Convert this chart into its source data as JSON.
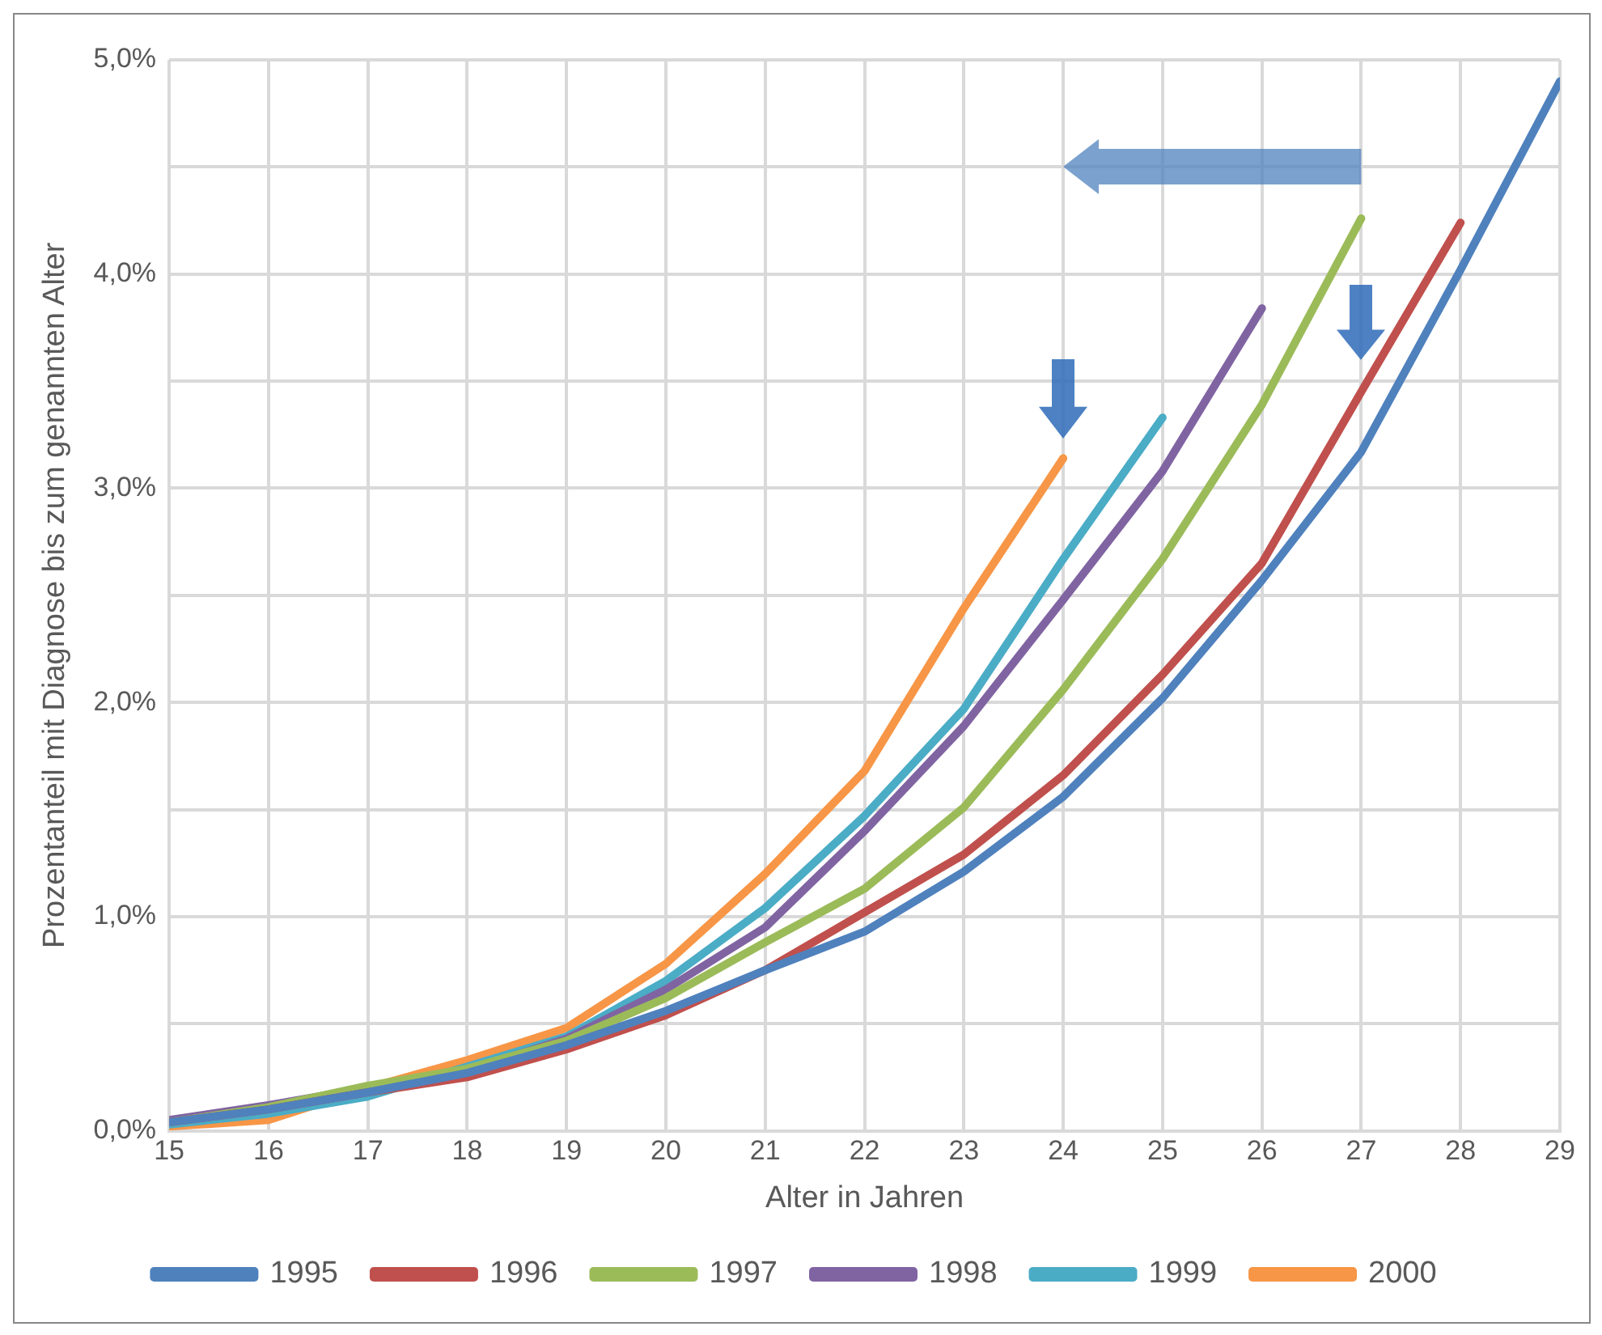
{
  "chart_data": {
    "type": "line",
    "xlabel": "Alter in Jahren",
    "ylabel": "Prozentanteil mit Diagnose bis zum genannten Alter",
    "x": [
      15,
      16,
      17,
      18,
      19,
      20,
      21,
      22,
      23,
      24,
      25,
      26,
      27,
      28,
      29
    ],
    "xlim": [
      15,
      29
    ],
    "xticks": [
      15,
      16,
      17,
      18,
      19,
      20,
      21,
      22,
      23,
      24,
      25,
      26,
      27,
      28,
      29
    ],
    "ylim": [
      0,
      5
    ],
    "yticks": [
      {
        "value": 0,
        "label": "0,0%"
      },
      {
        "value": 0.5,
        "label": null
      },
      {
        "value": 1,
        "label": "1,0%"
      },
      {
        "value": 1.5,
        "label": null
      },
      {
        "value": 2,
        "label": "2,0%"
      },
      {
        "value": 2.5,
        "label": null
      },
      {
        "value": 3,
        "label": "3,0%"
      },
      {
        "value": 3.5,
        "label": null
      },
      {
        "value": 4,
        "label": "4,0%"
      },
      {
        "value": 4.5,
        "label": null
      },
      {
        "value": 5,
        "label": "5,0%"
      }
    ],
    "grid": true,
    "legend": "bottom",
    "marker": "none",
    "line_style": "solid",
    "series": [
      {
        "name": "1995",
        "color": "#4f81bd",
        "values": [
          0.04,
          0.1,
          0.18,
          0.27,
          0.4,
          0.56,
          0.75,
          0.93,
          1.21,
          1.56,
          2.02,
          2.57,
          3.17,
          4.02,
          4.9
        ]
      },
      {
        "name": "1996",
        "color": "#c0504d",
        "values": [
          0.04,
          0.1,
          0.18,
          0.25,
          0.38,
          0.54,
          0.75,
          1.02,
          1.29,
          1.66,
          2.13,
          2.65,
          3.45,
          4.24,
          null
        ]
      },
      {
        "name": "1997",
        "color": "#9bbb59",
        "values": [
          0.04,
          0.11,
          0.21,
          0.29,
          0.42,
          0.62,
          0.88,
          1.13,
          1.51,
          2.06,
          2.67,
          3.39,
          4.26,
          null,
          null
        ]
      },
      {
        "name": "1998",
        "color": "#8064a2",
        "values": [
          0.05,
          0.12,
          0.2,
          0.28,
          0.43,
          0.66,
          0.95,
          1.4,
          1.89,
          2.48,
          3.08,
          3.84,
          null,
          null,
          null
        ]
      },
      {
        "name": "1999",
        "color": "#4bacc6",
        "values": [
          0.03,
          0.08,
          0.16,
          0.3,
          0.44,
          0.7,
          1.04,
          1.47,
          1.97,
          2.67,
          3.33,
          null,
          null,
          null,
          null
        ]
      },
      {
        "name": "2000",
        "color": "#f79646",
        "values": [
          0.02,
          0.05,
          0.2,
          0.33,
          0.48,
          0.78,
          1.2,
          1.68,
          2.44,
          3.14,
          null,
          null,
          null,
          null,
          null
        ]
      }
    ]
  }
}
